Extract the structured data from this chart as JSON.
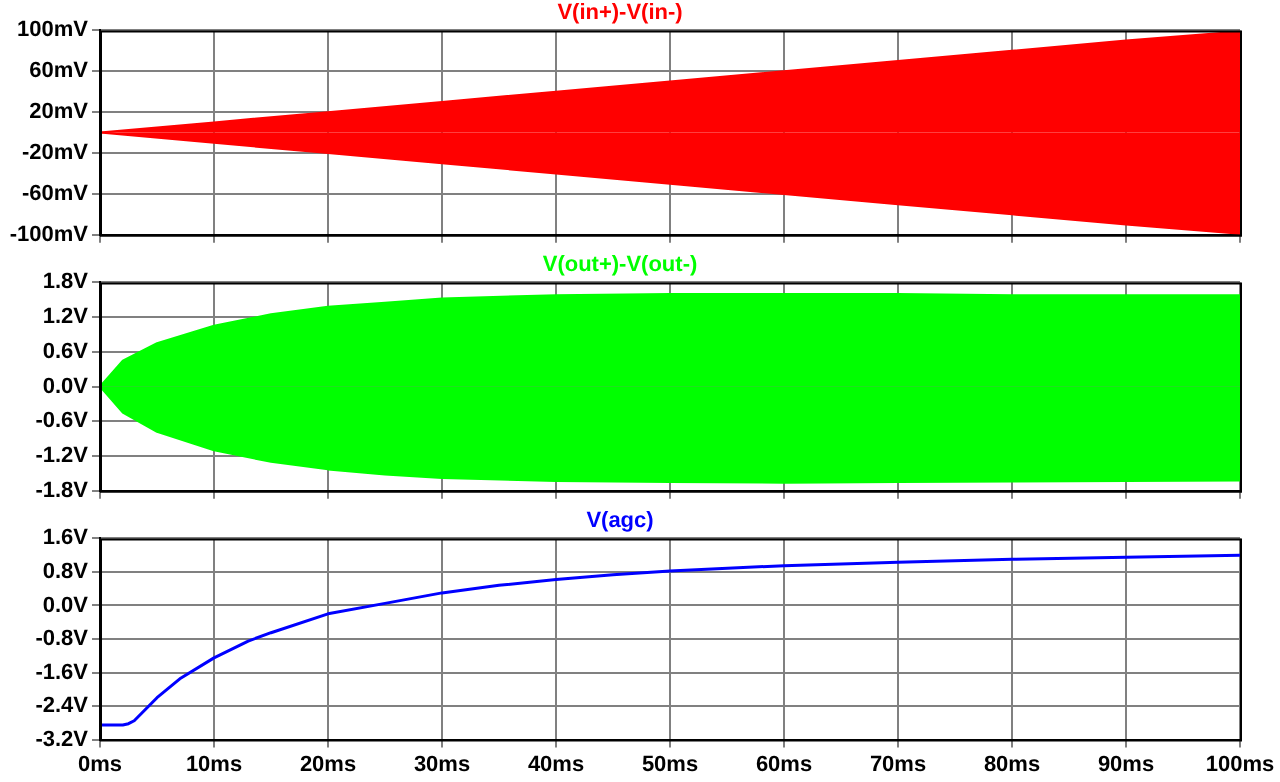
{
  "chart_data": [
    {
      "type": "area",
      "title": "V(in+)-V(in-)",
      "xlim": [
        0,
        100
      ],
      "xticks": [
        0,
        10,
        20,
        30,
        40,
        50,
        60,
        70,
        80,
        90,
        100
      ],
      "ylim": [
        -100,
        100
      ],
      "yticks": [
        {
          "value": 100,
          "label": "100mV"
        },
        {
          "value": 60,
          "label": "60mV"
        },
        {
          "value": 20,
          "label": "20mV"
        },
        {
          "value": -20,
          "label": "-20mV"
        },
        {
          "value": -60,
          "label": "-60mV"
        },
        {
          "value": -100,
          "label": "-100mV"
        }
      ],
      "grid": true,
      "tick_labels": "y",
      "x": [
        0,
        10,
        20,
        30,
        40,
        50,
        60,
        70,
        80,
        90,
        100
      ],
      "series": [
        {
          "color": "#ff0000",
          "values": [
            0,
            10,
            20,
            30,
            40,
            50,
            60,
            70,
            80,
            90,
            99
          ]
        },
        {
          "color": "#ff0000",
          "values": [
            0,
            -10,
            -20,
            -30,
            -40,
            -50,
            -60,
            -70,
            -80,
            -90,
            -99
          ]
        }
      ]
    },
    {
      "type": "area",
      "title": "V(out+)-V(out-)",
      "xlim": [
        0,
        100
      ],
      "xticks": [
        0,
        10,
        20,
        30,
        40,
        50,
        60,
        70,
        80,
        90,
        100
      ],
      "ylim": [
        -1.8,
        1.8
      ],
      "yticks": [
        {
          "value": 1.8,
          "label": "1.8V"
        },
        {
          "value": 1.2,
          "label": "1.2V"
        },
        {
          "value": 0.6,
          "label": "0.6V"
        },
        {
          "value": 0,
          "label": "0.0V"
        },
        {
          "value": -0.6,
          "label": "-0.6V"
        },
        {
          "value": -1.2,
          "label": "-1.2V"
        },
        {
          "value": -1.8,
          "label": "-1.8V"
        }
      ],
      "grid": true,
      "tick_labels": "y",
      "x": [
        0,
        2,
        5,
        10,
        15,
        20,
        25,
        30,
        40,
        50,
        60,
        70,
        80,
        90,
        100
      ],
      "series": [
        {
          "color": "#00ff00",
          "values": [
            0,
            0.45,
            0.75,
            1.05,
            1.25,
            1.38,
            1.45,
            1.52,
            1.58,
            1.6,
            1.6,
            1.6,
            1.58,
            1.58,
            1.58
          ]
        },
        {
          "color": "#00ff00",
          "values": [
            0,
            -0.45,
            -0.78,
            -1.1,
            -1.3,
            -1.43,
            -1.52,
            -1.58,
            -1.63,
            -1.65,
            -1.66,
            -1.65,
            -1.64,
            -1.63,
            -1.62
          ]
        }
      ]
    },
    {
      "type": "line",
      "title": "V(agc)",
      "xlim": [
        0,
        100
      ],
      "xticks": [
        {
          "value": 0,
          "label": "0ms"
        },
        {
          "value": 10,
          "label": "10ms"
        },
        {
          "value": 20,
          "label": "20ms"
        },
        {
          "value": 30,
          "label": "30ms"
        },
        {
          "value": 40,
          "label": "40ms"
        },
        {
          "value": 50,
          "label": "50ms"
        },
        {
          "value": 60,
          "label": "60ms"
        },
        {
          "value": 70,
          "label": "70ms"
        },
        {
          "value": 80,
          "label": "80ms"
        },
        {
          "value": 90,
          "label": "90ms"
        },
        {
          "value": 100,
          "label": "100ms"
        }
      ],
      "ylim": [
        -3.2,
        1.6
      ],
      "yticks": [
        {
          "value": 1.6,
          "label": "1.6V"
        },
        {
          "value": 0.8,
          "label": "0.8V"
        },
        {
          "value": 0,
          "label": "0.0V"
        },
        {
          "value": -0.8,
          "label": "-0.8V"
        },
        {
          "value": -1.6,
          "label": "-1.6V"
        },
        {
          "value": -2.4,
          "label": "-2.4V"
        },
        {
          "value": -3.2,
          "label": "-3.2V"
        }
      ],
      "grid": true,
      "x": [
        0,
        2,
        2.5,
        3,
        5,
        7,
        10,
        13,
        15,
        20,
        25,
        30,
        35,
        40,
        45,
        50,
        60,
        70,
        80,
        90,
        100
      ],
      "series": [
        {
          "color": "#0000ff",
          "values": [
            -2.85,
            -2.85,
            -2.82,
            -2.75,
            -2.2,
            -1.75,
            -1.25,
            -0.85,
            -0.65,
            -0.2,
            0.05,
            0.3,
            0.48,
            0.62,
            0.73,
            0.82,
            0.95,
            1.03,
            1.1,
            1.15,
            1.2
          ]
        }
      ]
    }
  ]
}
